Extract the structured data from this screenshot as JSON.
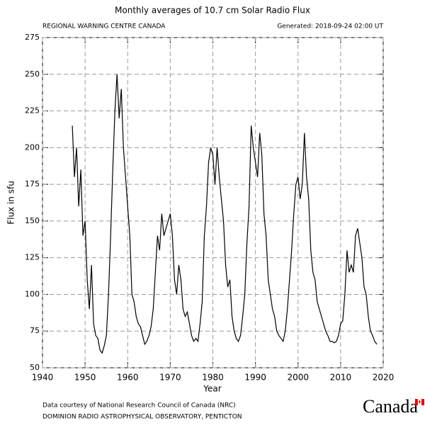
{
  "chart_data": {
    "type": "line",
    "title": "Monthly averages of 10.7 cm Solar Radio Flux",
    "subtitle_left": "REGIONAL WARNING CENTRE CANADA",
    "subtitle_right": "Generated: 2018-09-24 02:00 UT",
    "x_label": "Year",
    "y_label": "Flux in sfu",
    "footer_1": "Data courtesy of National Research Council of Canada (NRC)",
    "footer_2": "DOMINION RADIO ASTROPHYSICAL OBSERVATORY, PENTICTON",
    "wordmark": "Canada",
    "xlim": [
      1940,
      2020
    ],
    "xticks": [
      1940,
      1950,
      1960,
      1970,
      1980,
      1990,
      2000,
      2010,
      2020
    ],
    "ylim": [
      50,
      275
    ],
    "yticks": [
      50,
      75,
      100,
      125,
      150,
      175,
      200,
      225,
      250,
      275
    ],
    "grid": true,
    "x": [
      1947.0,
      1947.5,
      1948.0,
      1948.5,
      1949.0,
      1949.5,
      1950.0,
      1950.5,
      1951.0,
      1951.5,
      1952.0,
      1952.5,
      1953.0,
      1953.5,
      1954.0,
      1954.5,
      1955.0,
      1955.5,
      1956.0,
      1956.5,
      1957.0,
      1957.5,
      1958.0,
      1958.5,
      1959.0,
      1959.5,
      1960.0,
      1960.5,
      1961.0,
      1961.5,
      1962.0,
      1962.5,
      1963.0,
      1963.5,
      1964.0,
      1964.5,
      1965.0,
      1965.5,
      1966.0,
      1966.5,
      1967.0,
      1967.5,
      1968.0,
      1968.5,
      1969.0,
      1969.5,
      1970.0,
      1970.5,
      1971.0,
      1971.5,
      1972.0,
      1972.5,
      1973.0,
      1973.5,
      1974.0,
      1974.5,
      1975.0,
      1975.5,
      1976.0,
      1976.5,
      1977.0,
      1977.5,
      1978.0,
      1978.5,
      1979.0,
      1979.5,
      1980.0,
      1980.5,
      1981.0,
      1981.5,
      1982.0,
      1982.5,
      1983.0,
      1983.5,
      1984.0,
      1984.5,
      1985.0,
      1985.5,
      1986.0,
      1986.5,
      1987.0,
      1987.5,
      1988.0,
      1988.5,
      1989.0,
      1989.5,
      1990.0,
      1990.5,
      1991.0,
      1991.5,
      1992.0,
      1992.5,
      1993.0,
      1993.5,
      1994.0,
      1994.5,
      1995.0,
      1995.5,
      1996.0,
      1996.5,
      1997.0,
      1997.5,
      1998.0,
      1998.5,
      1999.0,
      1999.5,
      2000.0,
      2000.5,
      2001.0,
      2001.5,
      2002.0,
      2002.5,
      2003.0,
      2003.5,
      2004.0,
      2004.5,
      2005.0,
      2005.5,
      2006.0,
      2006.5,
      2007.0,
      2007.5,
      2008.0,
      2008.5,
      2009.0,
      2009.5,
      2010.0,
      2010.5,
      2011.0,
      2011.5,
      2012.0,
      2012.5,
      2013.0,
      2013.5,
      2014.0,
      2014.5,
      2015.0,
      2015.5,
      2016.0,
      2016.5,
      2017.0,
      2017.5,
      2018.0,
      2018.5
    ],
    "series": [
      {
        "color": "#000000",
        "values": [
          215,
          180,
          200,
          160,
          185,
          140,
          150,
          110,
          90,
          120,
          80,
          72,
          70,
          62,
          60,
          65,
          72,
          100,
          140,
          185,
          225,
          250,
          220,
          240,
          200,
          180,
          160,
          140,
          100,
          95,
          85,
          80,
          78,
          72,
          66,
          68,
          72,
          78,
          90,
          115,
          140,
          130,
          155,
          140,
          145,
          150,
          155,
          140,
          110,
          100,
          120,
          110,
          90,
          85,
          88,
          80,
          72,
          68,
          70,
          68,
          80,
          95,
          140,
          160,
          190,
          200,
          195,
          175,
          200,
          180,
          165,
          150,
          120,
          105,
          110,
          85,
          75,
          70,
          68,
          72,
          85,
          100,
          135,
          160,
          215,
          200,
          190,
          180,
          210,
          195,
          155,
          140,
          110,
          100,
          90,
          85,
          75,
          72,
          70,
          68,
          75,
          90,
          110,
          130,
          155,
          175,
          180,
          165,
          175,
          210,
          180,
          165,
          130,
          115,
          110,
          95,
          90,
          85,
          80,
          75,
          72,
          68,
          68,
          67,
          68,
          72,
          80,
          82,
          100,
          130,
          115,
          120,
          115,
          140,
          145,
          135,
          125,
          105,
          100,
          85,
          75,
          72,
          68,
          66
        ]
      }
    ]
  }
}
